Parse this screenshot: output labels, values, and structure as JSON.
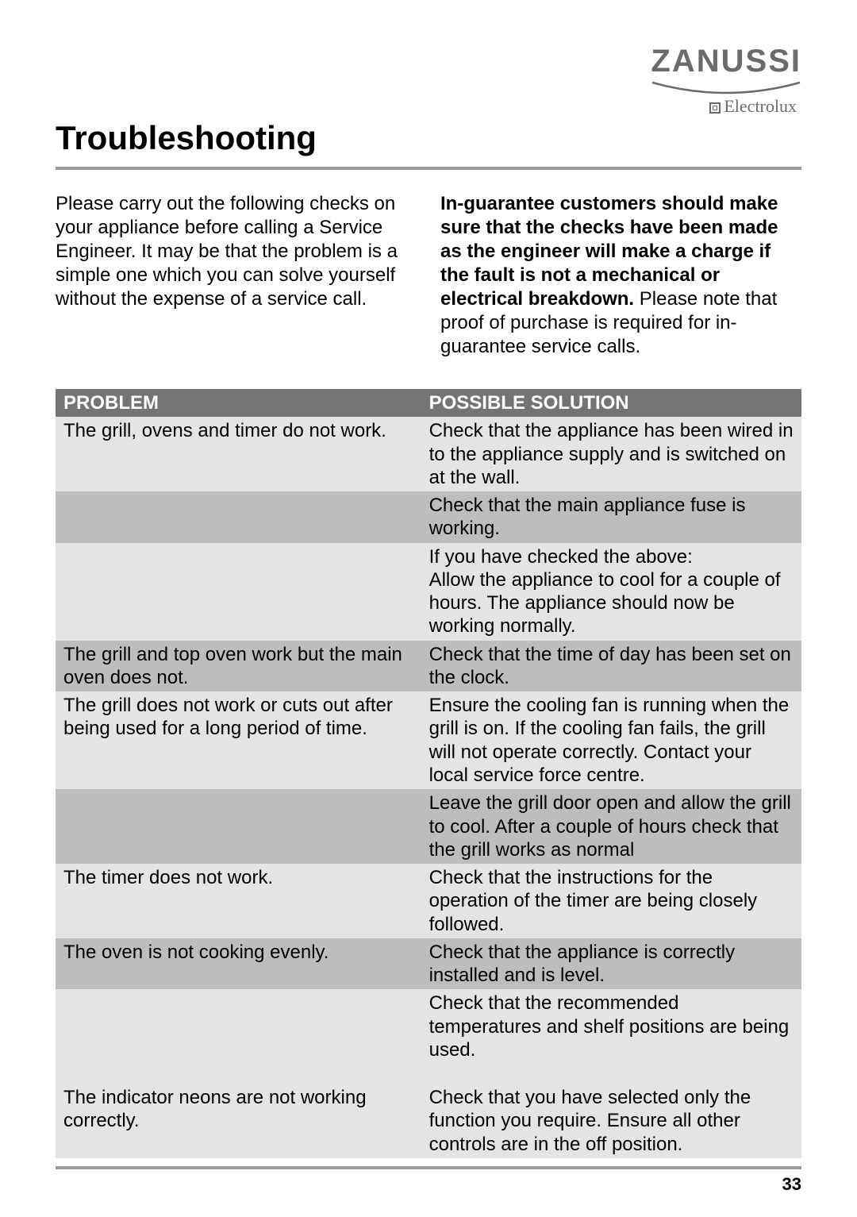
{
  "brand": {
    "main": "ZANUSSI",
    "sub": "Electrolux"
  },
  "title": "Troubleshooting",
  "intro": {
    "left": "Please carry out the following checks on your appliance before calling a Service Engineer. It may be that the problem is a simple one which you can solve yourself without the expense of a service call.",
    "right_bold": "In-guarantee customers should make sure that the checks have been made as the engineer will make a charge if the fault is not a mechanical or electrical breakdown.",
    "right_rest": "Please note that proof of purchase is required for in-guarantee service calls."
  },
  "table": {
    "header_problem": "PROBLEM",
    "header_solution": "POSSIBLE SOLUTION",
    "header_bg": "#747474",
    "header_color": "#ffffff",
    "row_light_bg": "#e4e4e4",
    "row_dark_bg": "#bdbdbd",
    "rows": [
      {
        "shade": "light",
        "problem": "The grill, ovens and timer do not work.",
        "solution": "Check that the appliance has been wired in to the appliance supply and is switched on at the wall."
      },
      {
        "shade": "dark",
        "problem": "",
        "solution": "Check that the main appliance fuse is working."
      },
      {
        "shade": "light",
        "problem": "",
        "solution": "If you have checked the above:\nAllow the appliance to cool for a couple of hours.  The appliance should now be working normally."
      },
      {
        "shade": "dark",
        "problem": "The grill and top oven work but the main oven does not.",
        "solution": "Check that the time of day has been set on the clock."
      },
      {
        "shade": "light",
        "problem": "The grill does not work or cuts out after being used for a long period of time.",
        "solution": "Ensure the cooling fan is running when the grill is on.  If the cooling fan fails, the grill will not operate correctly.  Contact your local service force centre."
      },
      {
        "shade": "dark",
        "problem": "",
        "solution": "Leave the grill door open and allow the grill to cool.  After a couple of hours check that the grill works as normal"
      },
      {
        "shade": "light",
        "problem": "The timer does not work.",
        "solution": "Check that the instructions for the operation of the timer are being closely followed."
      },
      {
        "shade": "dark",
        "problem": "The oven is not cooking evenly.",
        "solution": "Check that the appliance is correctly installed and is level."
      },
      {
        "shade": "light",
        "problem": "",
        "solution": "Check that the recommended temperatures and shelf positions are being used.",
        "pad_bottom": true
      },
      {
        "shade": "light",
        "problem": "The indicator neons are not working correctly.",
        "solution": "Check that you have selected only the function you require.  Ensure all other controls are in the off position."
      }
    ]
  },
  "page_number": "33",
  "colors": {
    "rule": "#9a9a9a",
    "brand": "#6b6b6b",
    "text": "#000000",
    "background": "#ffffff"
  },
  "fontsize": {
    "title": 42,
    "body": 24,
    "brand_main": 40,
    "brand_sub": 22,
    "page_num": 22
  }
}
